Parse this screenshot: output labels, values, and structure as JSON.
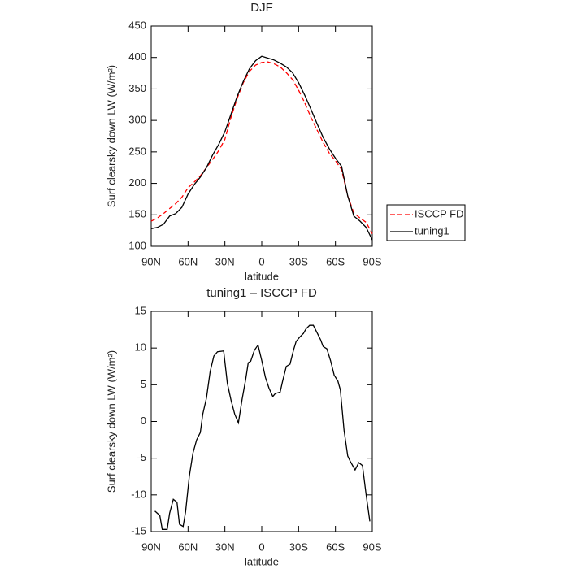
{
  "chart_data": [
    {
      "type": "line",
      "title": "DJF",
      "xlabel": "latitude",
      "ylabel": "Surf clearsky down LW (W/m²)",
      "xlim": [
        90,
        -90
      ],
      "xticks": [
        {
          "value": 90,
          "label": "90N"
        },
        {
          "value": 60,
          "label": "60N"
        },
        {
          "value": 30,
          "label": "30N"
        },
        0,
        {
          "value": -30,
          "label": "30S"
        },
        {
          "value": -60,
          "label": "60S"
        },
        {
          "value": -90,
          "label": "90S"
        }
      ],
      "ylim": [
        100,
        450
      ],
      "yticks": [
        100,
        150,
        200,
        250,
        300,
        350,
        400,
        450
      ],
      "legend": "right",
      "x": [
        90,
        85,
        80,
        75,
        70,
        65,
        60,
        55,
        50,
        45,
        40,
        35,
        30,
        25,
        20,
        15,
        10,
        5,
        0,
        -5,
        -10,
        -15,
        -20,
        -25,
        -30,
        -35,
        -40,
        -45,
        -50,
        -55,
        -60,
        -65,
        -70,
        -75,
        -80,
        -85,
        -90
      ],
      "series": [
        {
          "name": "ISCCP FD",
          "color": "#ff0000",
          "linestyle": "dashed",
          "values": [
            140,
            145,
            152,
            160,
            168,
            178,
            193,
            202,
            212,
            225,
            238,
            252,
            270,
            305,
            335,
            360,
            378,
            388,
            392,
            393,
            390,
            385,
            376,
            365,
            348,
            328,
            305,
            285,
            265,
            248,
            236,
            222,
            180,
            153,
            145,
            138,
            120
          ]
        },
        {
          "name": "tuning1",
          "color": "#000000",
          "linestyle": "solid",
          "values": [
            128,
            130,
            135,
            148,
            152,
            162,
            183,
            198,
            210,
            225,
            245,
            262,
            282,
            310,
            338,
            362,
            382,
            395,
            402,
            399,
            396,
            391,
            385,
            376,
            360,
            340,
            318,
            295,
            273,
            255,
            240,
            227,
            180,
            148,
            140,
            130,
            110
          ]
        }
      ]
    },
    {
      "type": "line",
      "title": "tuning1 – ISCCP FD",
      "xlabel": "latitude",
      "ylabel": "Surf clearsky down LW (W/m²)",
      "xlim": [
        90,
        -90
      ],
      "xticks": [
        {
          "value": 90,
          "label": "90N"
        },
        {
          "value": 60,
          "label": "60N"
        },
        {
          "value": 30,
          "label": "30N"
        },
        0,
        {
          "value": -30,
          "label": "30S"
        },
        {
          "value": -60,
          "label": "60S"
        },
        {
          "value": -90,
          "label": "90S"
        }
      ],
      "ylim": [
        -15,
        15
      ],
      "yticks": [
        -15,
        -10,
        -5,
        0,
        5,
        10,
        15
      ],
      "x": [
        87,
        83,
        81,
        77,
        75,
        72,
        69,
        67,
        64,
        62,
        59,
        56,
        53,
        50,
        48,
        45,
        42,
        39,
        36,
        31,
        28,
        25,
        22,
        19,
        16,
        13,
        11,
        9,
        6,
        3,
        0,
        -3,
        -6,
        -9,
        -11,
        -15,
        -17,
        -20,
        -23,
        -26,
        -28,
        -31,
        -34,
        -36,
        -39,
        -42,
        -45,
        -48,
        -50,
        -53,
        -56,
        -59,
        -62,
        -64,
        -67,
        -70,
        -72,
        -76,
        -79,
        -82,
        -85,
        -88
      ],
      "series": [
        {
          "color": "#000000",
          "linestyle": "solid",
          "values": [
            -12.2,
            -12.8,
            -14.7,
            -14.7,
            -12.5,
            -10.6,
            -11.0,
            -14.0,
            -14.3,
            -12.3,
            -7.5,
            -4.3,
            -2.5,
            -1.5,
            1.0,
            3.2,
            6.8,
            8.9,
            9.5,
            9.6,
            5.2,
            2.9,
            1.0,
            -0.2,
            3.0,
            5.8,
            8.0,
            8.2,
            9.7,
            10.4,
            8.3,
            6.0,
            4.5,
            3.4,
            3.8,
            4.0,
            5.5,
            7.5,
            7.8,
            9.8,
            10.9,
            11.5,
            12.0,
            12.6,
            13.1,
            13.1,
            12.1,
            11.1,
            10.2,
            9.9,
            8.3,
            6.3,
            5.5,
            4.3,
            -1.2,
            -4.7,
            -5.4,
            -6.6,
            -5.6,
            -6.0,
            -10.0,
            -13.6
          ]
        }
      ]
    }
  ]
}
